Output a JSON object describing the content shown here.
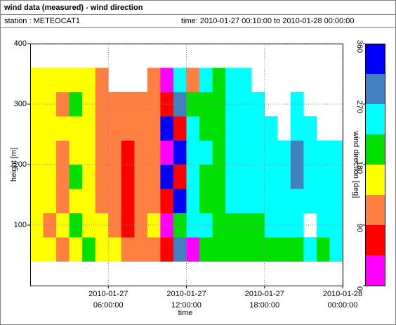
{
  "chart_data": {
    "type": "heatmap",
    "title": "wind data (measured) - wind direction",
    "station": "station : METEOCAT1",
    "period": "time: 2010-01-27 00:10:00 to 2010-01-28 00:00:00",
    "xlabel": "time",
    "ylabel": "height [m]",
    "colorbar_label": "wind direction [deg]",
    "xlim": [
      "2010-01-27 00:00:00",
      "2010-01-28 00:00:00"
    ],
    "xticks": [
      "2010-01-27 06:00:00",
      "2010-01-27 12:00:00",
      "2010-01-27 18:00:00",
      "2010-01-28 00:00:00"
    ],
    "ylim": [
      0,
      400
    ],
    "yticks": [
      100,
      200,
      300,
      400
    ],
    "grid": true,
    "clim": [
      0,
      360
    ],
    "cticks": [
      0,
      90,
      180,
      270,
      360
    ],
    "colors": [
      "#ff00ff",
      "#ff0000",
      "#ff8040",
      "#ffff00",
      "#00e000",
      "#00ffff",
      "#4080c0",
      "#0000ff"
    ],
    "x": [
      "2010-01-27 00:00:00",
      "2010-01-27 01:00:00",
      "2010-01-27 02:00:00",
      "2010-01-27 03:00:00",
      "2010-01-27 04:00:00",
      "2010-01-27 05:00:00",
      "2010-01-27 06:00:00",
      "2010-01-27 07:00:00",
      "2010-01-27 08:00:00",
      "2010-01-27 09:00:00",
      "2010-01-27 10:00:00",
      "2010-01-27 11:00:00",
      "2010-01-27 12:00:00",
      "2010-01-27 13:00:00",
      "2010-01-27 14:00:00",
      "2010-01-27 15:00:00",
      "2010-01-27 16:00:00",
      "2010-01-27 17:00:00",
      "2010-01-27 18:00:00",
      "2010-01-27 19:00:00",
      "2010-01-27 20:00:00",
      "2010-01-27 21:00:00",
      "2010-01-27 22:00:00",
      "2010-01-27 23:00:00",
      "2010-01-28 00:00:00"
    ],
    "y": [
      40,
      80,
      120,
      160,
      200,
      240,
      280,
      320,
      360
    ],
    "z": [
      [
        150,
        160,
        120,
        170,
        200,
        160,
        170,
        120,
        110,
        130,
        50,
        300,
        30,
        200,
        200,
        200,
        200,
        200,
        210,
        200,
        220,
        240,
        200,
        230
      ],
      [
        150,
        120,
        160,
        190,
        160,
        150,
        120,
        60,
        120,
        140,
        20,
        210,
        240,
        240,
        200,
        220,
        200,
        220,
        240,
        240,
        240,
        null,
        240,
        240
      ],
      [
        160,
        150,
        120,
        160,
        170,
        130,
        110,
        60,
        110,
        120,
        60,
        330,
        230,
        210,
        210,
        240,
        240,
        240,
        250,
        240,
        240,
        250,
        240,
        240
      ],
      [
        150,
        170,
        110,
        190,
        160,
        120,
        120,
        60,
        120,
        110,
        340,
        60,
        250,
        220,
        200,
        240,
        240,
        240,
        240,
        240,
        280,
        240,
        240,
        240
      ],
      [
        160,
        160,
        130,
        170,
        150,
        110,
        110,
        70,
        130,
        100,
        40,
        340,
        240,
        230,
        200,
        240,
        240,
        240,
        240,
        240,
        290,
        240,
        240,
        240
      ],
      [
        150,
        140,
        160,
        160,
        150,
        130,
        110,
        110,
        120,
        110,
        330,
        60,
        250,
        210,
        190,
        240,
        240,
        240,
        240,
        null,
        240,
        240,
        null,
        null
      ],
      [
        150,
        160,
        120,
        180,
        160,
        110,
        120,
        120,
        130,
        120,
        60,
        300,
        220,
        200,
        200,
        240,
        240,
        250,
        null,
        null,
        240,
        null,
        null,
        null
      ],
      [
        150,
        150,
        140,
        170,
        160,
        120,
        null,
        null,
        null,
        120,
        30,
        250,
        110,
        230,
        200,
        240,
        240,
        null,
        null,
        null,
        null,
        null,
        null,
        null
      ]
    ]
  }
}
